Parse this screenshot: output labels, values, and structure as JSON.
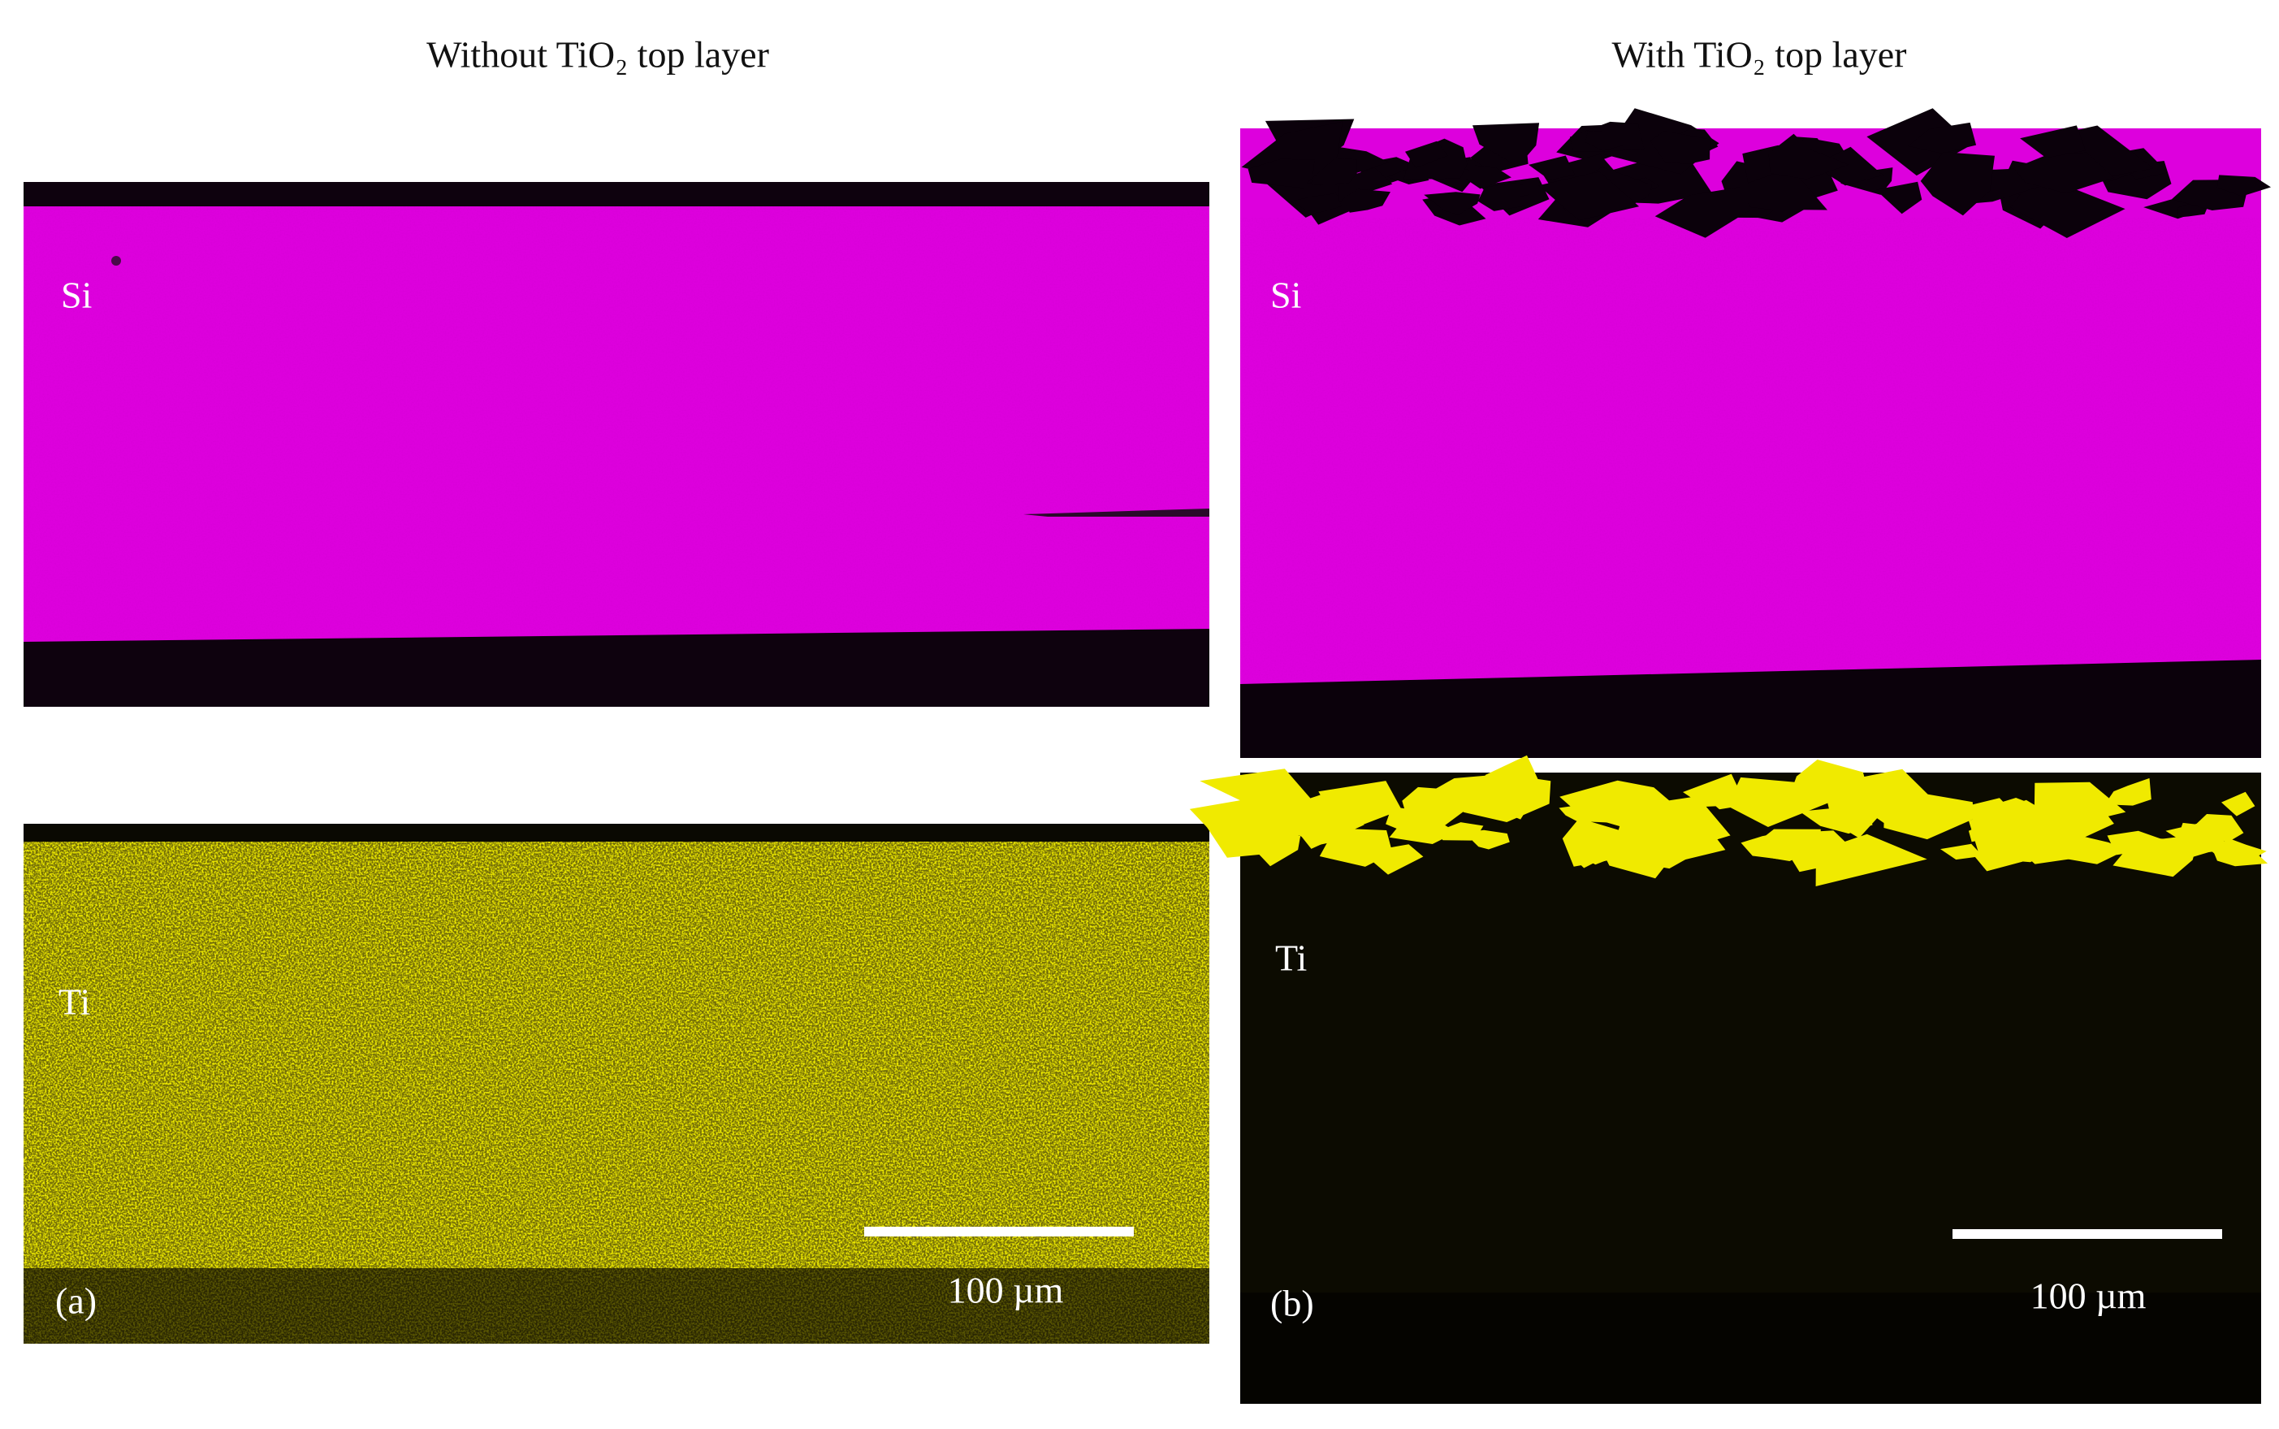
{
  "panels": [
    {
      "caption": "Without TiO₂ top layer",
      "maps": [
        {
          "element": "Si"
        },
        {
          "element": "Ti",
          "label": "(a)",
          "scale_bar": "100 µm"
        }
      ]
    },
    {
      "caption": "With TiO₂ top layer",
      "maps": [
        {
          "element": "Si"
        },
        {
          "element": "Ti",
          "label": "(b)",
          "scale_bar": "100 µm"
        }
      ]
    }
  ]
}
